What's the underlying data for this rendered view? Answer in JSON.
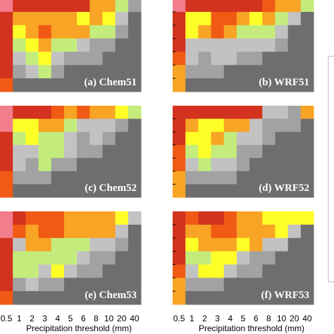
{
  "chart_data": {
    "type": "heatmap",
    "x_categories": [
      "0.5",
      "1",
      "2",
      "3",
      "4",
      "5",
      "6",
      "8",
      "10",
      "20",
      "40"
    ],
    "xlabel": "Precipitation threshold (mm)",
    "palette": [
      "#f27d8c",
      "#d2321e",
      "#f05a14",
      "#f8a424",
      "#ffff28",
      "#c4ec7c",
      "#c2c2c2",
      "#a2a2a2",
      "#6e6e6e"
    ],
    "panels": [
      {
        "label": "(a) Chem51",
        "cells": [
          [
            0,
            1,
            1,
            1,
            1,
            1,
            1,
            3,
            3,
            5,
            7
          ],
          [
            1,
            3,
            3,
            3,
            3,
            3,
            4,
            3,
            4,
            6,
            8
          ],
          [
            1,
            4,
            3,
            2,
            3,
            3,
            3,
            5,
            5,
            7,
            8
          ],
          [
            1,
            5,
            4,
            3,
            5,
            5,
            6,
            7,
            7,
            8,
            8
          ],
          [
            1,
            6,
            5,
            4,
            6,
            7,
            7,
            7,
            8,
            8,
            8
          ],
          [
            1,
            7,
            6,
            5,
            7,
            8,
            8,
            8,
            8,
            8,
            8
          ],
          [
            2,
            8,
            8,
            8,
            8,
            8,
            8,
            8,
            8,
            8,
            8
          ]
        ]
      },
      {
        "label": "(b) WRF51",
        "cells": [
          [
            0,
            1,
            1,
            1,
            1,
            1,
            1,
            2,
            3,
            3,
            5
          ],
          [
            1,
            4,
            4,
            2,
            2,
            3,
            4,
            3,
            5,
            6,
            8
          ],
          [
            1,
            4,
            3,
            2,
            3,
            5,
            5,
            5,
            6,
            8,
            8
          ],
          [
            1,
            6,
            6,
            6,
            6,
            6,
            6,
            6,
            7,
            8,
            8
          ],
          [
            2,
            6,
            7,
            6,
            6,
            7,
            7,
            8,
            8,
            8,
            8
          ],
          [
            3,
            7,
            7,
            7,
            8,
            8,
            8,
            8,
            8,
            8,
            8
          ],
          [
            3,
            8,
            8,
            8,
            8,
            8,
            8,
            8,
            8,
            8,
            8
          ]
        ]
      },
      {
        "label": "(c) Chem52",
        "cells": [
          [
            0,
            1,
            1,
            1,
            2,
            3,
            2,
            3,
            3,
            4,
            5
          ],
          [
            0,
            4,
            4,
            3,
            3,
            5,
            6,
            6,
            6,
            7,
            8
          ],
          [
            1,
            5,
            4,
            5,
            5,
            6,
            7,
            6,
            7,
            8,
            8
          ],
          [
            1,
            6,
            6,
            5,
            5,
            6,
            7,
            7,
            8,
            8,
            8
          ],
          [
            1,
            6,
            7,
            5,
            7,
            7,
            8,
            8,
            8,
            8,
            8
          ],
          [
            2,
            7,
            7,
            7,
            8,
            8,
            8,
            8,
            8,
            8,
            8
          ],
          [
            2,
            8,
            8,
            8,
            8,
            8,
            8,
            8,
            8,
            8,
            8
          ]
        ]
      },
      {
        "label": "(d) WRF52",
        "cells": [
          [
            1,
            1,
            1,
            1,
            1,
            1,
            1,
            6,
            6,
            7,
            3
          ],
          [
            1,
            3,
            4,
            4,
            3,
            3,
            6,
            7,
            7,
            7,
            8
          ],
          [
            1,
            4,
            4,
            3,
            5,
            6,
            6,
            7,
            8,
            8,
            8
          ],
          [
            2,
            5,
            4,
            5,
            5,
            7,
            7,
            8,
            8,
            8,
            8
          ],
          [
            2,
            6,
            5,
            6,
            6,
            7,
            8,
            8,
            8,
            8,
            8
          ],
          [
            3,
            7,
            7,
            7,
            7,
            8,
            8,
            8,
            8,
            8,
            8
          ],
          [
            3,
            8,
            8,
            8,
            8,
            8,
            8,
            8,
            8,
            8,
            8
          ]
        ]
      },
      {
        "label": "(e) Chem53",
        "cells": [
          [
            0,
            1,
            2,
            2,
            2,
            3,
            3,
            3,
            3,
            4,
            6
          ],
          [
            0,
            2,
            3,
            2,
            2,
            3,
            3,
            3,
            3,
            6,
            8
          ],
          [
            1,
            6,
            3,
            3,
            5,
            5,
            5,
            6,
            6,
            7,
            8
          ],
          [
            1,
            5,
            5,
            5,
            5,
            5,
            6,
            7,
            7,
            8,
            8
          ],
          [
            1,
            5,
            5,
            6,
            4,
            6,
            7,
            7,
            8,
            8,
            8
          ],
          [
            1,
            7,
            6,
            7,
            7,
            8,
            8,
            8,
            8,
            8,
            8
          ],
          [
            2,
            8,
            8,
            8,
            8,
            8,
            8,
            8,
            8,
            8,
            8
          ]
        ]
      },
      {
        "label": "(f) WRF53",
        "cells": [
          [
            1,
            2,
            1,
            1,
            2,
            3,
            3,
            4,
            4,
            4,
            4
          ],
          [
            1,
            3,
            3,
            2,
            2,
            3,
            3,
            3,
            4,
            6,
            8
          ],
          [
            1,
            4,
            3,
            3,
            3,
            4,
            3,
            6,
            6,
            8,
            8
          ],
          [
            1,
            5,
            5,
            4,
            4,
            6,
            7,
            7,
            8,
            8,
            8
          ],
          [
            2,
            6,
            4,
            4,
            6,
            7,
            7,
            8,
            8,
            8,
            8
          ],
          [
            3,
            7,
            7,
            7,
            8,
            8,
            8,
            8,
            8,
            8,
            8
          ],
          [
            3,
            8,
            8,
            8,
            8,
            8,
            8,
            8,
            8,
            8,
            8
          ]
        ]
      }
    ]
  }
}
